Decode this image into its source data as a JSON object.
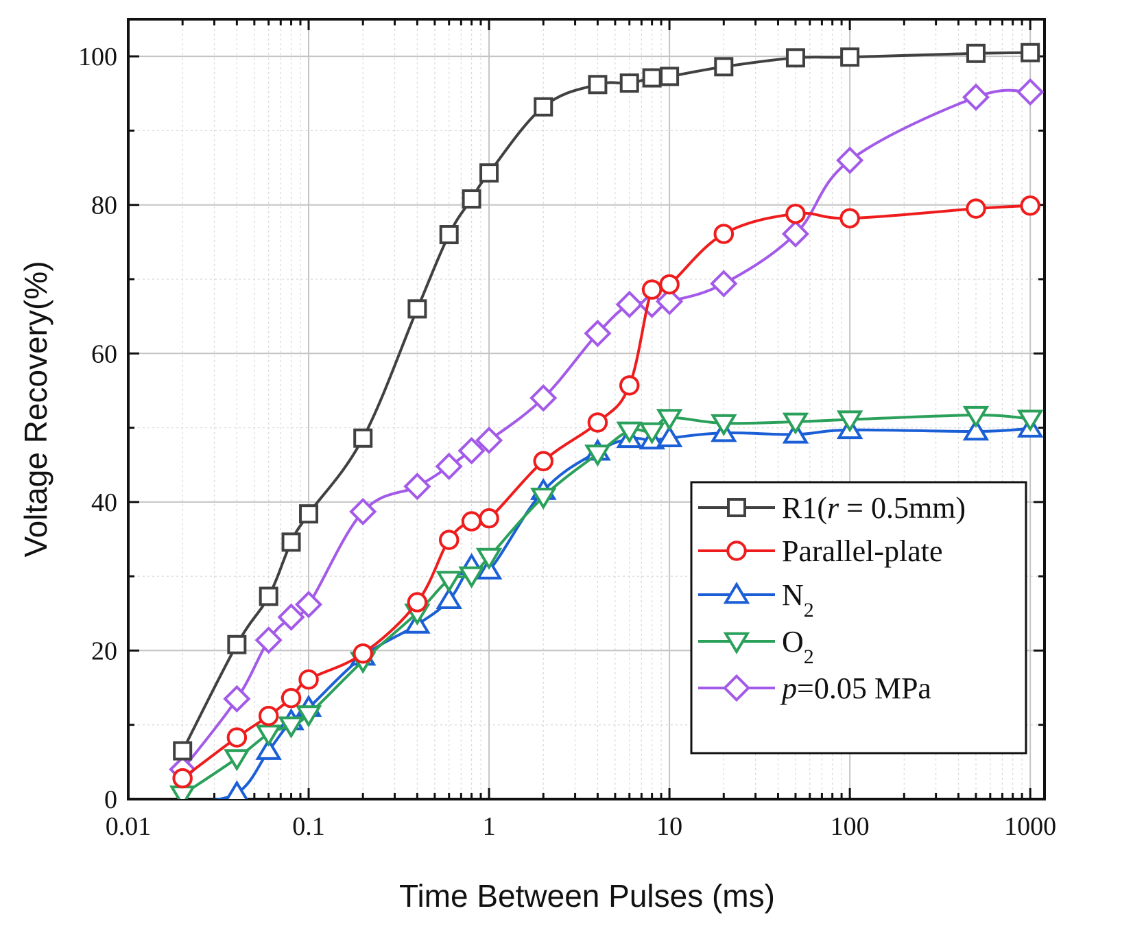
{
  "chart_data": {
    "type": "line",
    "title": "",
    "xlabel": "Time Between Pulses (ms)",
    "ylabel": "Voltage Recovery(%)",
    "xscale": "log",
    "xlim": [
      0.01,
      1200
    ],
    "ylim": [
      0,
      105
    ],
    "xticks": [
      0.01,
      0.1,
      1,
      10,
      100,
      1000
    ],
    "xtick_labels": [
      "0.01",
      "0.1",
      "1",
      "10",
      "100",
      "1000"
    ],
    "yticks": [
      0,
      20,
      40,
      60,
      80,
      100
    ],
    "ytick_labels": [
      "0",
      "20",
      "40",
      "60",
      "80",
      "100"
    ],
    "grid": true,
    "legend_position": "lower-right",
    "series": [
      {
        "name": "R1(r = 0.5mm)",
        "label_parts": [
          {
            "text": "R1(",
            "italic": false
          },
          {
            "text": "r",
            "italic": true
          },
          {
            "text": " = 0.5mm)",
            "italic": false
          }
        ],
        "color": "#404040",
        "marker": "square",
        "x": [
          0.02,
          0.04,
          0.06,
          0.08,
          0.1,
          0.2,
          0.4,
          0.6,
          0.8,
          1,
          2,
          4,
          6,
          8,
          10,
          20,
          50,
          100,
          500,
          1000
        ],
        "y": [
          6.5,
          20.8,
          27.3,
          34.6,
          38.4,
          48.6,
          66,
          76,
          80.8,
          84.3,
          93.2,
          96.2,
          96.4,
          97.1,
          97.3,
          98.6,
          99.8,
          99.9,
          100.4,
          100.5
        ]
      },
      {
        "name": "Parallel-plate",
        "label_parts": [
          {
            "text": "Parallel-plate",
            "italic": false
          }
        ],
        "color": "#ee1c1c",
        "marker": "circle",
        "x": [
          0.02,
          0.04,
          0.06,
          0.08,
          0.1,
          0.2,
          0.4,
          0.6,
          0.8,
          1,
          2,
          4,
          6,
          8,
          10,
          20,
          50,
          100,
          500,
          1000
        ],
        "y": [
          2.8,
          8.3,
          11.2,
          13.6,
          16.1,
          19.6,
          26.5,
          34.9,
          37.4,
          37.8,
          45.5,
          50.7,
          55.7,
          68.6,
          69.3,
          76.1,
          78.8,
          78.2,
          79.5,
          79.9
        ]
      },
      {
        "name": "N2",
        "label_parts": [
          {
            "text": "N",
            "italic": false
          },
          {
            "text": "2",
            "sub": true
          }
        ],
        "color": "#1b5fd6",
        "marker": "triangle-up",
        "x": [
          0.02,
          0.04,
          0.06,
          0.08,
          0.1,
          0.2,
          0.4,
          0.6,
          0.8,
          1,
          2,
          4,
          6,
          8,
          10,
          20,
          50,
          100,
          500,
          1000
        ],
        "y": [
          -0.5,
          0.8,
          6.5,
          10.5,
          12.3,
          19.2,
          23.5,
          26.8,
          31.4,
          30.8,
          41.5,
          46.8,
          48.5,
          48.3,
          48.6,
          49.3,
          49.1,
          49.7,
          49.5,
          49.9
        ]
      },
      {
        "name": "O2",
        "label_parts": [
          {
            "text": "O",
            "italic": false
          },
          {
            "text": "2",
            "sub": true
          }
        ],
        "color": "#2aa05a",
        "marker": "triangle-down",
        "x": [
          0.02,
          0.04,
          0.06,
          0.08,
          0.1,
          0.2,
          0.4,
          0.6,
          0.8,
          1,
          2,
          4,
          6,
          8,
          10,
          20,
          50,
          100,
          500,
          1000
        ],
        "y": [
          0.6,
          5.5,
          8.8,
          9.9,
          11.4,
          18.6,
          25.1,
          29.5,
          30.1,
          32.6,
          40.7,
          46.5,
          49.6,
          49.5,
          51.3,
          50.6,
          50.8,
          51.1,
          51.7,
          51.2
        ]
      },
      {
        "name": "p=0.05 MPa",
        "label_parts": [
          {
            "text": "p",
            "italic": true
          },
          {
            "text": "=0.05 MPa",
            "italic": false
          }
        ],
        "color": "#a35ae8",
        "marker": "diamond",
        "x": [
          0.02,
          0.04,
          0.06,
          0.08,
          0.1,
          0.2,
          0.4,
          0.6,
          0.8,
          1,
          2,
          4,
          6,
          8,
          10,
          20,
          50,
          100,
          500,
          1000
        ],
        "y": [
          4,
          13.5,
          21.4,
          24.5,
          26.2,
          38.7,
          42.1,
          44.8,
          46.9,
          48.3,
          54,
          62.7,
          66.6,
          66.6,
          67,
          69.4,
          76.1,
          86,
          94.5,
          95.2
        ]
      }
    ]
  }
}
